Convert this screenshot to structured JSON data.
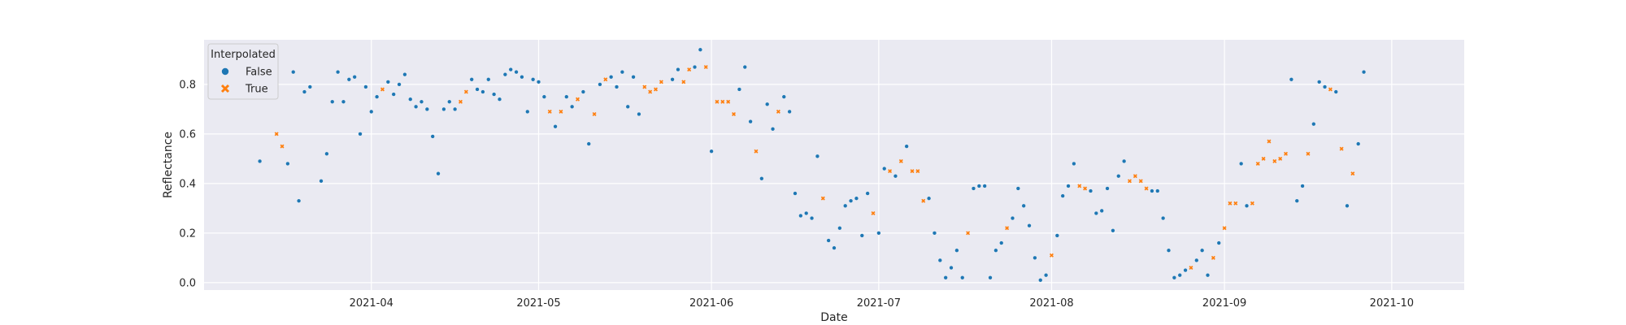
{
  "chart_data": {
    "type": "scatter",
    "xlabel": "Date",
    "ylabel": "Reflectance",
    "x_ticks": [
      "2021-04",
      "2021-05",
      "2021-06",
      "2021-07",
      "2021-08",
      "2021-09",
      "2021-10"
    ],
    "y_ticks": [
      "0.0",
      "0.2",
      "0.4",
      "0.6",
      "0.8"
    ],
    "xlim": [
      "2021-03-02",
      "2021-10-14"
    ],
    "ylim": [
      -0.03,
      0.98
    ],
    "grid": true,
    "legend": {
      "title": "Interpolated",
      "placement": "top-left",
      "entries": [
        {
          "label": "False",
          "color": "#1f77b4",
          "marker": "circle"
        },
        {
          "label": "True",
          "color": "#ff7f0e",
          "marker": "x"
        }
      ]
    },
    "series": [
      {
        "name": "False",
        "color": "#1f77b4",
        "marker": "circle",
        "points": [
          [
            "2021-03-12",
            0.49
          ],
          [
            "2021-03-17",
            0.48
          ],
          [
            "2021-03-18",
            0.85
          ],
          [
            "2021-03-19",
            0.33
          ],
          [
            "2021-03-20",
            0.77
          ],
          [
            "2021-03-21",
            0.79
          ],
          [
            "2021-03-23",
            0.41
          ],
          [
            "2021-03-24",
            0.52
          ],
          [
            "2021-03-25",
            0.73
          ],
          [
            "2021-03-26",
            0.85
          ],
          [
            "2021-03-27",
            0.73
          ],
          [
            "2021-03-28",
            0.82
          ],
          [
            "2021-03-29",
            0.83
          ],
          [
            "2021-03-30",
            0.6
          ],
          [
            "2021-03-31",
            0.79
          ],
          [
            "2021-04-01",
            0.69
          ],
          [
            "2021-04-02",
            0.75
          ],
          [
            "2021-04-04",
            0.81
          ],
          [
            "2021-04-05",
            0.76
          ],
          [
            "2021-04-06",
            0.8
          ],
          [
            "2021-04-07",
            0.84
          ],
          [
            "2021-04-08",
            0.74
          ],
          [
            "2021-04-09",
            0.71
          ],
          [
            "2021-04-10",
            0.73
          ],
          [
            "2021-04-11",
            0.7
          ],
          [
            "2021-04-12",
            0.59
          ],
          [
            "2021-04-13",
            0.44
          ],
          [
            "2021-04-14",
            0.7
          ],
          [
            "2021-04-15",
            0.73
          ],
          [
            "2021-04-16",
            0.7
          ],
          [
            "2021-04-19",
            0.82
          ],
          [
            "2021-04-20",
            0.78
          ],
          [
            "2021-04-21",
            0.77
          ],
          [
            "2021-04-22",
            0.82
          ],
          [
            "2021-04-23",
            0.76
          ],
          [
            "2021-04-24",
            0.74
          ],
          [
            "2021-04-25",
            0.84
          ],
          [
            "2021-04-26",
            0.86
          ],
          [
            "2021-04-27",
            0.85
          ],
          [
            "2021-04-28",
            0.83
          ],
          [
            "2021-04-29",
            0.69
          ],
          [
            "2021-04-30",
            0.82
          ],
          [
            "2021-05-01",
            0.81
          ],
          [
            "2021-05-02",
            0.75
          ],
          [
            "2021-05-04",
            0.63
          ],
          [
            "2021-05-06",
            0.75
          ],
          [
            "2021-05-07",
            0.71
          ],
          [
            "2021-05-09",
            0.77
          ],
          [
            "2021-05-10",
            0.56
          ],
          [
            "2021-05-12",
            0.8
          ],
          [
            "2021-05-14",
            0.83
          ],
          [
            "2021-05-15",
            0.79
          ],
          [
            "2021-05-16",
            0.85
          ],
          [
            "2021-05-17",
            0.71
          ],
          [
            "2021-05-18",
            0.83
          ],
          [
            "2021-05-19",
            0.68
          ],
          [
            "2021-05-25",
            0.82
          ],
          [
            "2021-05-26",
            0.86
          ],
          [
            "2021-05-29",
            0.87
          ],
          [
            "2021-05-30",
            0.94
          ],
          [
            "2021-06-01",
            0.53
          ],
          [
            "2021-06-06",
            0.78
          ],
          [
            "2021-06-07",
            0.87
          ],
          [
            "2021-06-08",
            0.65
          ],
          [
            "2021-06-10",
            0.42
          ],
          [
            "2021-06-11",
            0.72
          ],
          [
            "2021-06-12",
            0.62
          ],
          [
            "2021-06-14",
            0.75
          ],
          [
            "2021-06-15",
            0.69
          ],
          [
            "2021-06-16",
            0.36
          ],
          [
            "2021-06-17",
            0.27
          ],
          [
            "2021-06-18",
            0.28
          ],
          [
            "2021-06-19",
            0.26
          ],
          [
            "2021-06-20",
            0.51
          ],
          [
            "2021-06-22",
            0.17
          ],
          [
            "2021-06-23",
            0.14
          ],
          [
            "2021-06-24",
            0.22
          ],
          [
            "2021-06-25",
            0.31
          ],
          [
            "2021-06-26",
            0.33
          ],
          [
            "2021-06-27",
            0.34
          ],
          [
            "2021-06-28",
            0.19
          ],
          [
            "2021-06-29",
            0.36
          ],
          [
            "2021-07-01",
            0.2
          ],
          [
            "2021-07-02",
            0.46
          ],
          [
            "2021-07-04",
            0.43
          ],
          [
            "2021-07-06",
            0.55
          ],
          [
            "2021-07-10",
            0.34
          ],
          [
            "2021-07-11",
            0.2
          ],
          [
            "2021-07-12",
            0.09
          ],
          [
            "2021-07-13",
            0.02
          ],
          [
            "2021-07-14",
            0.06
          ],
          [
            "2021-07-15",
            0.13
          ],
          [
            "2021-07-16",
            0.02
          ],
          [
            "2021-07-18",
            0.38
          ],
          [
            "2021-07-19",
            0.39
          ],
          [
            "2021-07-20",
            0.39
          ],
          [
            "2021-07-21",
            0.02
          ],
          [
            "2021-07-22",
            0.13
          ],
          [
            "2021-07-23",
            0.16
          ],
          [
            "2021-07-25",
            0.26
          ],
          [
            "2021-07-26",
            0.38
          ],
          [
            "2021-07-27",
            0.31
          ],
          [
            "2021-07-28",
            0.23
          ],
          [
            "2021-07-29",
            0.1
          ],
          [
            "2021-07-30",
            0.01
          ],
          [
            "2021-07-31",
            0.03
          ],
          [
            "2021-08-02",
            0.19
          ],
          [
            "2021-08-03",
            0.35
          ],
          [
            "2021-08-04",
            0.39
          ],
          [
            "2021-08-05",
            0.48
          ],
          [
            "2021-08-08",
            0.37
          ],
          [
            "2021-08-09",
            0.28
          ],
          [
            "2021-08-10",
            0.29
          ],
          [
            "2021-08-11",
            0.38
          ],
          [
            "2021-08-12",
            0.21
          ],
          [
            "2021-08-13",
            0.43
          ],
          [
            "2021-08-14",
            0.49
          ],
          [
            "2021-08-19",
            0.37
          ],
          [
            "2021-08-20",
            0.37
          ],
          [
            "2021-08-21",
            0.26
          ],
          [
            "2021-08-22",
            0.13
          ],
          [
            "2021-08-23",
            0.02
          ],
          [
            "2021-08-24",
            0.03
          ],
          [
            "2021-08-25",
            0.05
          ],
          [
            "2021-08-27",
            0.09
          ],
          [
            "2021-08-28",
            0.13
          ],
          [
            "2021-08-29",
            0.03
          ],
          [
            "2021-08-31",
            0.16
          ],
          [
            "2021-09-04",
            0.48
          ],
          [
            "2021-09-05",
            0.31
          ],
          [
            "2021-09-13",
            0.82
          ],
          [
            "2021-09-14",
            0.33
          ],
          [
            "2021-09-15",
            0.39
          ],
          [
            "2021-09-17",
            0.64
          ],
          [
            "2021-09-18",
            0.81
          ],
          [
            "2021-09-19",
            0.79
          ],
          [
            "2021-09-21",
            0.77
          ],
          [
            "2021-09-23",
            0.31
          ],
          [
            "2021-09-25",
            0.56
          ],
          [
            "2021-09-26",
            0.85
          ]
        ]
      },
      {
        "name": "True",
        "color": "#ff7f0e",
        "marker": "x",
        "points": [
          [
            "2021-03-15",
            0.6
          ],
          [
            "2021-03-16",
            0.55
          ],
          [
            "2021-04-03",
            0.78
          ],
          [
            "2021-04-17",
            0.73
          ],
          [
            "2021-04-18",
            0.77
          ],
          [
            "2021-05-03",
            0.69
          ],
          [
            "2021-05-05",
            0.69
          ],
          [
            "2021-05-08",
            0.74
          ],
          [
            "2021-05-11",
            0.68
          ],
          [
            "2021-05-13",
            0.82
          ],
          [
            "2021-05-20",
            0.79
          ],
          [
            "2021-05-21",
            0.77
          ],
          [
            "2021-05-22",
            0.78
          ],
          [
            "2021-05-23",
            0.81
          ],
          [
            "2021-05-27",
            0.81
          ],
          [
            "2021-05-28",
            0.86
          ],
          [
            "2021-05-31",
            0.87
          ],
          [
            "2021-06-02",
            0.73
          ],
          [
            "2021-06-03",
            0.73
          ],
          [
            "2021-06-04",
            0.73
          ],
          [
            "2021-06-05",
            0.68
          ],
          [
            "2021-06-09",
            0.53
          ],
          [
            "2021-06-13",
            0.69
          ],
          [
            "2021-06-21",
            0.34
          ],
          [
            "2021-06-30",
            0.28
          ],
          [
            "2021-07-03",
            0.45
          ],
          [
            "2021-07-05",
            0.49
          ],
          [
            "2021-07-07",
            0.45
          ],
          [
            "2021-07-08",
            0.45
          ],
          [
            "2021-07-09",
            0.33
          ],
          [
            "2021-07-17",
            0.2
          ],
          [
            "2021-07-24",
            0.22
          ],
          [
            "2021-08-01",
            0.11
          ],
          [
            "2021-08-06",
            0.39
          ],
          [
            "2021-08-07",
            0.38
          ],
          [
            "2021-08-15",
            0.41
          ],
          [
            "2021-08-16",
            0.43
          ],
          [
            "2021-08-17",
            0.41
          ],
          [
            "2021-08-18",
            0.38
          ],
          [
            "2021-08-26",
            0.06
          ],
          [
            "2021-08-30",
            0.1
          ],
          [
            "2021-09-01",
            0.22
          ],
          [
            "2021-09-02",
            0.32
          ],
          [
            "2021-09-03",
            0.32
          ],
          [
            "2021-09-06",
            0.32
          ],
          [
            "2021-09-07",
            0.48
          ],
          [
            "2021-09-08",
            0.5
          ],
          [
            "2021-09-09",
            0.57
          ],
          [
            "2021-09-10",
            0.49
          ],
          [
            "2021-09-11",
            0.5
          ],
          [
            "2021-09-12",
            0.52
          ],
          [
            "2021-09-16",
            0.52
          ],
          [
            "2021-09-20",
            0.78
          ],
          [
            "2021-09-22",
            0.54
          ],
          [
            "2021-09-24",
            0.44
          ]
        ]
      }
    ]
  }
}
